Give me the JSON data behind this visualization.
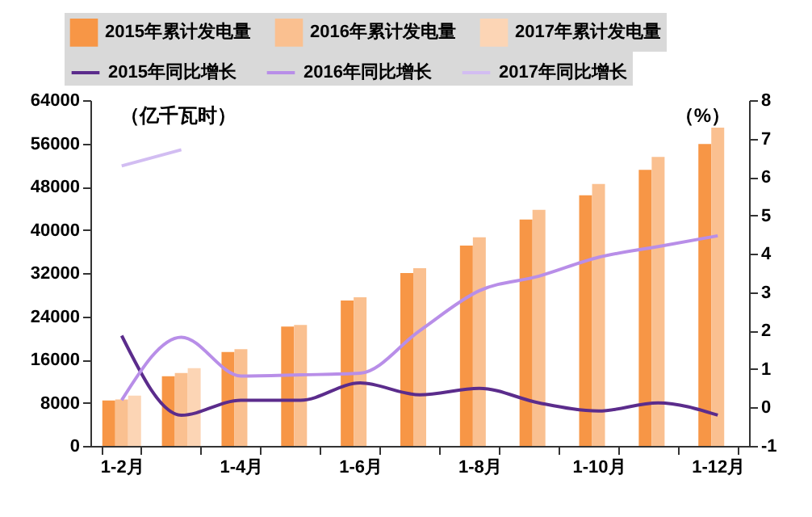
{
  "chart_data": {
    "type": "bar",
    "categories": [
      "1-2月",
      null,
      "1-4月",
      null,
      "1-6月",
      null,
      "1-8月",
      null,
      "1-10月",
      null,
      "1-12月"
    ],
    "ylabel": "（亿千瓦时）",
    "y2label": "（%）",
    "ylim": [
      0,
      64000
    ],
    "yticks": [
      0,
      8000,
      16000,
      24000,
      32000,
      40000,
      48000,
      56000,
      64000
    ],
    "y2lim": [
      -1,
      8
    ],
    "y2ticks": [
      -1,
      0,
      1,
      2,
      3,
      4,
      5,
      6,
      7,
      8
    ],
    "legend": "top",
    "grid": false,
    "series": [
      {
        "name": "2015年累计发电量",
        "color": "#f79646",
        "values": [
          8400,
          12900,
          17400,
          22100,
          26900,
          32000,
          37100,
          41900,
          46400,
          51100,
          55900
        ]
      },
      {
        "name": "2016年累计发电量",
        "color": "#fac090",
        "values": [
          8600,
          13500,
          17900,
          22400,
          27500,
          32900,
          38600,
          43700,
          48500,
          53500,
          58900
        ]
      },
      {
        "name": "2017年累计发电量",
        "color": "#fcd5b5",
        "values": [
          9300,
          14400,
          null,
          null,
          null,
          null,
          null,
          null,
          null,
          null,
          null
        ]
      },
      {
        "name": "2015年同比增长",
        "type": "line",
        "axis": "y2",
        "color": "#5b2c8c",
        "values": [
          1.87,
          -0.2,
          0.19,
          0.19,
          0.64,
          0.33,
          0.5,
          0.12,
          -0.09,
          0.12,
          -0.2
        ]
      },
      {
        "name": "2016年同比增长",
        "type": "line",
        "axis": "y2",
        "color": "#b88ee8",
        "values": [
          0.19,
          1.83,
          0.82,
          0.85,
          0.89,
          2.0,
          3.04,
          3.42,
          3.91,
          4.19,
          4.47
        ]
      },
      {
        "name": "2017年同比增长",
        "type": "line",
        "axis": "y2",
        "color": "#d2bdf2",
        "values": [
          6.29,
          6.71,
          null,
          null,
          null,
          null,
          null,
          null,
          null,
          null,
          null
        ]
      }
    ]
  }
}
